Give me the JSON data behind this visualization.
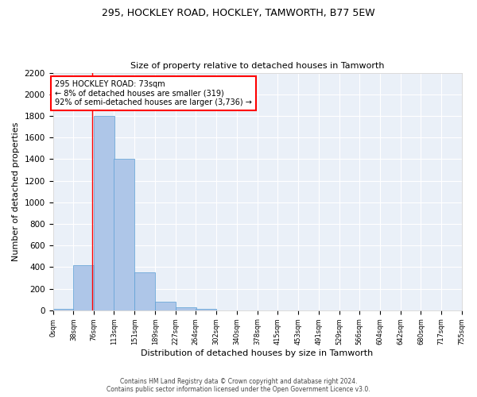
{
  "title_line1": "295, HOCKLEY ROAD, HOCKLEY, TAMWORTH, B77 5EW",
  "title_line2": "Size of property relative to detached houses in Tamworth",
  "xlabel": "Distribution of detached houses by size in Tamworth",
  "ylabel": "Number of detached properties",
  "bar_color": "#aec6e8",
  "bar_edge_color": "#5a9fd4",
  "annotation_line_color": "red",
  "background_color": "#eaf0f8",
  "grid_color": "#ffffff",
  "bin_edges": [
    0,
    38,
    76,
    113,
    151,
    189,
    227,
    264,
    302,
    340,
    378,
    415,
    453,
    491,
    529,
    566,
    604,
    642,
    680,
    717,
    755
  ],
  "bar_heights": [
    15,
    420,
    1800,
    1400,
    350,
    80,
    30,
    15,
    0,
    0,
    0,
    0,
    0,
    0,
    0,
    0,
    0,
    0,
    0,
    0
  ],
  "property_size": 73,
  "annotation_text": "295 HOCKLEY ROAD: 73sqm\n← 8% of detached houses are smaller (319)\n92% of semi-detached houses are larger (3,736) →",
  "ylim": [
    0,
    2200
  ],
  "yticks": [
    0,
    200,
    400,
    600,
    800,
    1000,
    1200,
    1400,
    1600,
    1800,
    2000,
    2200
  ],
  "tick_labels": [
    "0sqm",
    "38sqm",
    "76sqm",
    "113sqm",
    "151sqm",
    "189sqm",
    "227sqm",
    "264sqm",
    "302sqm",
    "340sqm",
    "378sqm",
    "415sqm",
    "453sqm",
    "491sqm",
    "529sqm",
    "566sqm",
    "604sqm",
    "642sqm",
    "680sqm",
    "717sqm",
    "755sqm"
  ],
  "footer_line1": "Contains HM Land Registry data © Crown copyright and database right 2024.",
  "footer_line2": "Contains public sector information licensed under the Open Government Licence v3.0.",
  "figsize": [
    6.0,
    5.0
  ],
  "dpi": 100
}
